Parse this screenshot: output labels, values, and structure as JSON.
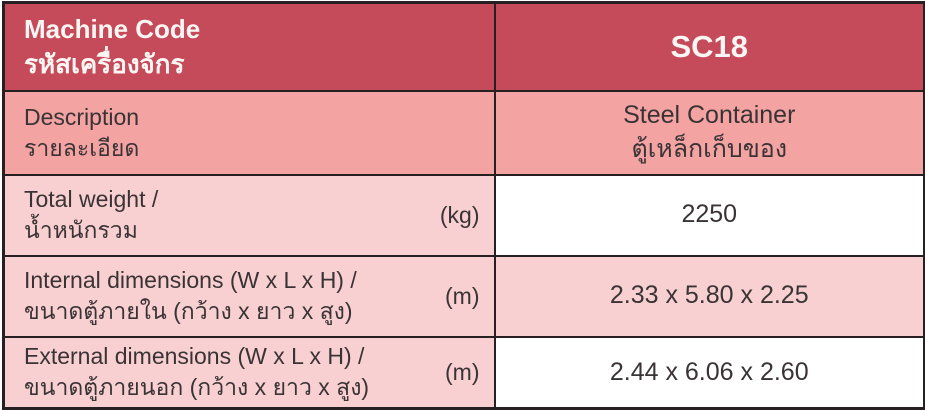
{
  "colors": {
    "header_bg": "#c64b5a",
    "salmon_pink": "#f2a3a2",
    "light_pink": "#f8d0d1",
    "white": "#ffffff",
    "border": "#262022",
    "header_text": "#fbf6f3",
    "body_text": "#3a3335"
  },
  "header": {
    "label_en": "Machine Code",
    "label_th": "รหัสเครื่องจักร",
    "code": "SC18"
  },
  "rows": [
    {
      "label_en": "Description",
      "label_th": "รายละเอียด",
      "value_line1": "Steel Container",
      "value_line2": "ตู้เหล็กเก็บของ"
    },
    {
      "label_en": "Total weight /",
      "label_th": "น้ำหนักรวม",
      "unit": "(kg)",
      "value_line1": "2250"
    },
    {
      "label_en": "Internal dimensions (W x L x H) /",
      "label_th": "ขนาดตู้ภายใน (กว้าง x ยาว x สูง)",
      "unit": "(m)",
      "value_line1": "2.33 x 5.80 x 2.25"
    },
    {
      "label_en": "External dimensions (W x L x H) /",
      "label_th": "ขนาดตู้ภายนอก (กว้าง x ยาว x สูง)",
      "unit": "(m)",
      "value_line1": "2.44 x 6.06 x 2.60"
    }
  ]
}
